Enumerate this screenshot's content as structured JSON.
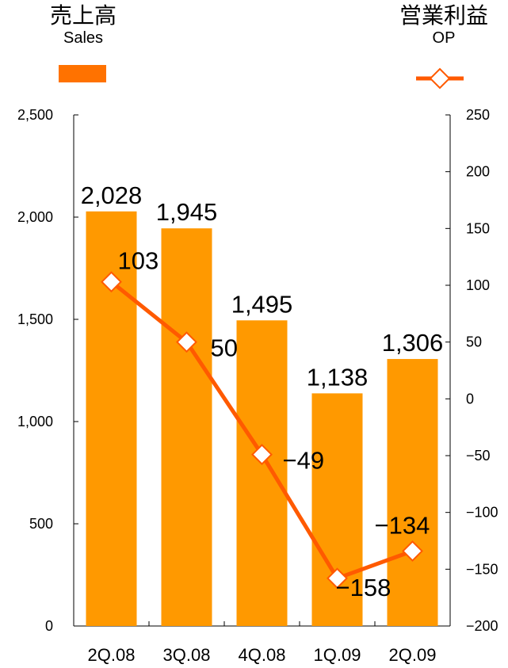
{
  "legend": {
    "sales_jp": "売上高",
    "sales_en": "Sales",
    "op_jp": "営業利益",
    "op_en": "OP",
    "bar_color": "#ff7200",
    "line_color": "#ff5a00"
  },
  "chart_data": {
    "type": "bar",
    "categories": [
      "2Q.08",
      "3Q.08",
      "4Q.08",
      "1Q.09",
      "2Q.09"
    ],
    "series": [
      {
        "name": "Sales",
        "type": "bar",
        "axis": "left",
        "values": [
          2028,
          1945,
          1495,
          1138,
          1306
        ],
        "labels": [
          "2,028",
          "1,945",
          "1,495",
          "1,138",
          "1,306"
        ],
        "color": "#ff9900"
      },
      {
        "name": "OP",
        "type": "line",
        "axis": "right",
        "values": [
          103,
          50,
          -49,
          -158,
          -134
        ],
        "labels": [
          "103",
          "50",
          "−49",
          "−158",
          "−134"
        ],
        "color": "#ff5a00",
        "marker": "diamond"
      }
    ],
    "y_left": {
      "ylim": [
        0,
        2500
      ],
      "ticks": [
        0,
        500,
        1000,
        1500,
        2000,
        2500
      ],
      "tick_labels": [
        "0",
        "500",
        "1,000",
        "1,500",
        "2,000",
        "2,500"
      ]
    },
    "y_right": {
      "ylim": [
        -200,
        250
      ],
      "ticks": [
        -200,
        -150,
        -100,
        -50,
        0,
        50,
        100,
        150,
        200,
        250
      ],
      "tick_labels": [
        "−200",
        "−150",
        "−100",
        "−50",
        "0",
        "50",
        "100",
        "150",
        "200",
        "250"
      ]
    },
    "grid": false
  }
}
